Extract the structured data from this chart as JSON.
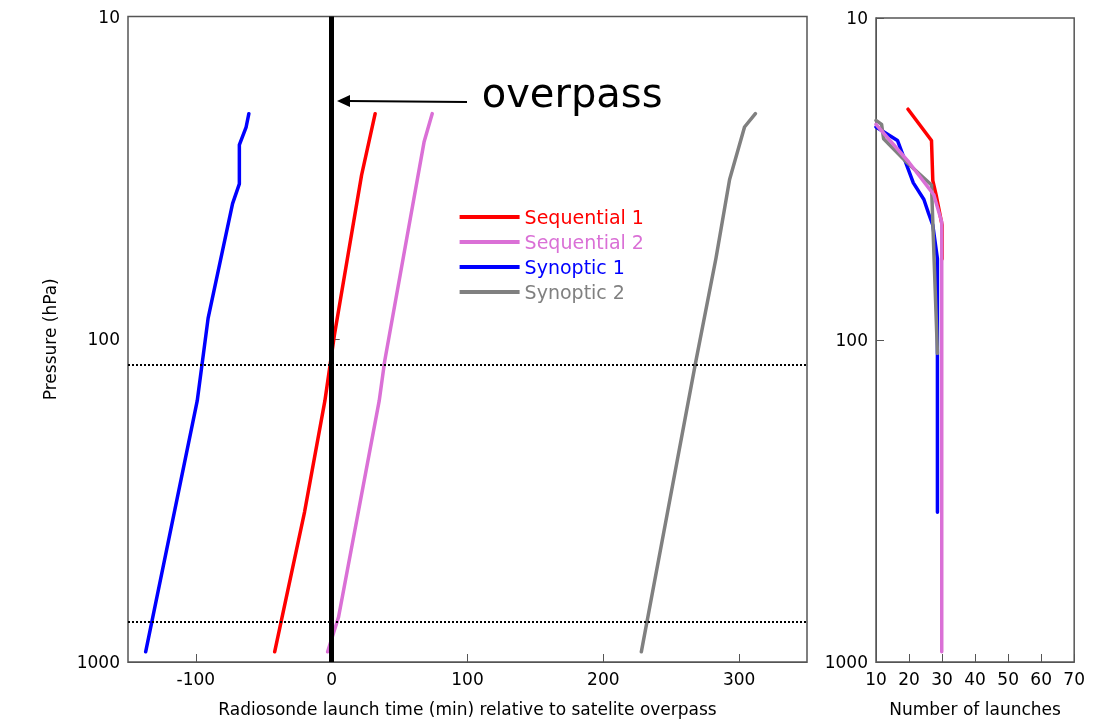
{
  "chart_data": [
    {
      "type": "line",
      "xlabel": "Radiosonde launch time (min) relative to satelite overpass",
      "ylabel": "Pressure (hPa)",
      "xlim": [
        -150,
        350
      ],
      "xticks": [
        -100,
        0,
        100,
        200,
        300
      ],
      "ylim": [
        1000,
        10
      ],
      "yticks": [
        10,
        100,
        1000
      ],
      "log": "y",
      "grid": false,
      "legend": "right",
      "marker": "none",
      "line_style": "solid",
      "series": [
        {
          "name": "Sequential 1",
          "color": "#ff0000",
          "x": [
            32,
            22,
            2,
            -5,
            -20,
            -42
          ],
          "values": [
            20,
            31,
            97,
            155,
            343,
            930
          ]
        },
        {
          "name": "Sequential 2",
          "color": "#da70d6",
          "x": [
            74,
            68,
            39,
            35,
            5,
            -3
          ],
          "values": [
            20,
            24.5,
            117,
            155,
            727,
            930
          ]
        },
        {
          "name": "Synoptic 1",
          "color": "#0000ff",
          "x": [
            -61,
            -63,
            -68,
            -68,
            -73,
            -91,
            -99,
            -137
          ],
          "values": [
            20,
            22,
            25,
            33,
            38,
            86,
            155,
            930
          ]
        },
        {
          "name": "Synoptic 2",
          "color": "#808080",
          "x": [
            312,
            304,
            293,
            283,
            268,
            228
          ],
          "values": [
            20,
            22,
            32,
            56,
            118,
            930
          ]
        }
      ],
      "ref_lines": [
        {
          "axis": "x",
          "value": 0,
          "color": "#000000",
          "line_style": "solid"
        },
        {
          "axis": "y",
          "value": 120,
          "color": "#000000",
          "line_style": "dotted"
        },
        {
          "axis": "y",
          "value": 750,
          "color": "#000000",
          "line_style": "dotted"
        }
      ],
      "annotations": [
        "overpass"
      ]
    },
    {
      "type": "line",
      "xlabel": "Number of launches",
      "xlim": [
        10,
        70
      ],
      "xticks": [
        10,
        20,
        30,
        40,
        50,
        60,
        70
      ],
      "ylim": [
        1000,
        10
      ],
      "yticks": [
        10,
        100,
        1000
      ],
      "log": "y",
      "grid": false,
      "marker": "none",
      "line_style": "solid",
      "series": [
        {
          "color": "#ff0000",
          "x": [
            19.7,
            26.8,
            27.2,
            28.2,
            30,
            30
          ],
          "values": [
            19.2,
            24,
            32,
            35.4,
            44,
            56
          ]
        },
        {
          "color": "#0000ff",
          "x": [
            10,
            16.5,
            21.3,
            24.5,
            25.9,
            27.2,
            28.6,
            28.6
          ],
          "values": [
            21.8,
            24,
            32.5,
            36.6,
            40.4,
            44,
            56,
            343
          ]
        },
        {
          "color": "#808080",
          "x": [
            10,
            11.7,
            12.3,
            19.2,
            26.8,
            27.5,
            28.6
          ],
          "values": [
            20.8,
            21.4,
            23.7,
            28,
            33,
            52.8,
            110
          ]
        },
        {
          "color": "#da70d6",
          "x": [
            10,
            19.9,
            27.5,
            29.9,
            29.9
          ],
          "values": [
            21.4,
            28,
            35.4,
            43,
            930
          ]
        }
      ]
    }
  ]
}
